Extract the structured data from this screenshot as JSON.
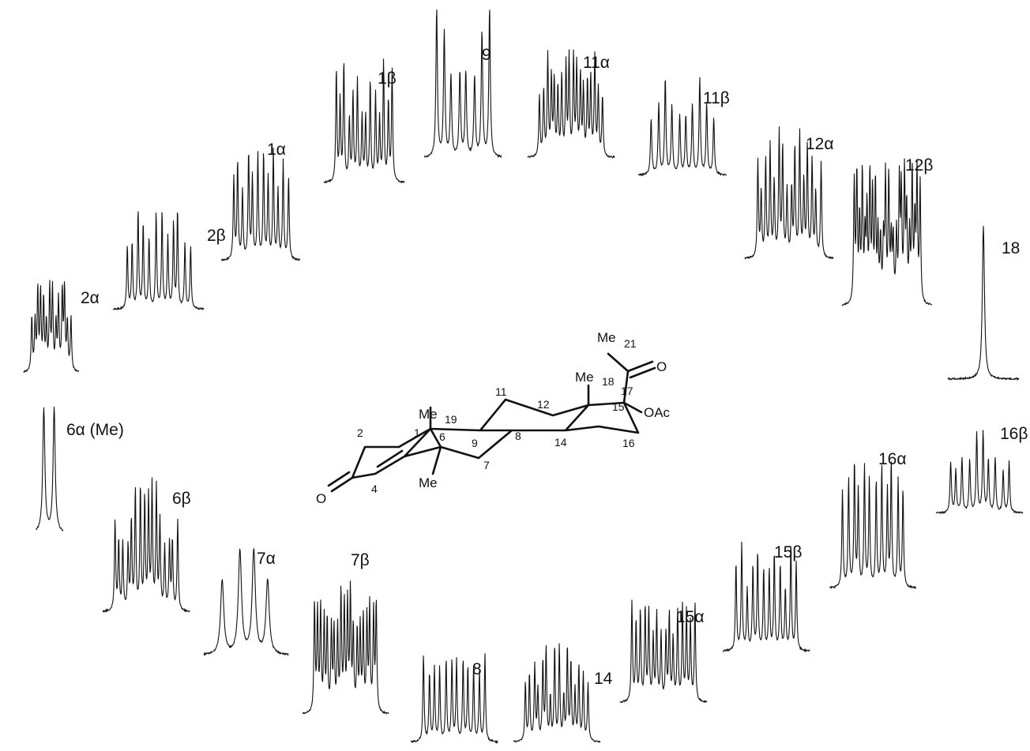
{
  "spectra": [
    "2α",
    "2β",
    "1α",
    "1β",
    "9",
    "11α",
    "11β",
    "12α",
    "12β",
    "18",
    "16β",
    "16α",
    "15β",
    "15α",
    "14",
    "8",
    "7β",
    "7α",
    "6β",
    "6α (Me)"
  ],
  "structure": {
    "me19": "Me",
    "c19": "19",
    "me18": "Me",
    "c18": "18",
    "me21": "Me",
    "c21": "21",
    "ketone_o": "O",
    "carbonyl_o": "O",
    "oac": "OAc",
    "me6": "Me",
    "positions": [
      "1",
      "2",
      "4",
      "6",
      "7",
      "8",
      "9",
      "11",
      "12",
      "14",
      "15",
      "16",
      "17"
    ]
  }
}
